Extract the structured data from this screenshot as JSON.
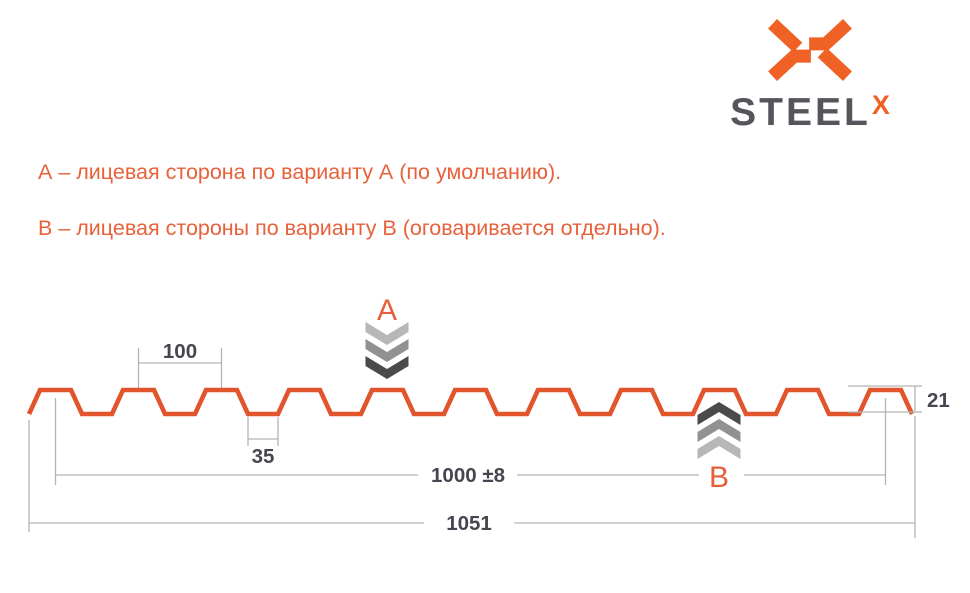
{
  "logo": {
    "brand": "STEEL",
    "brand_sup": "X"
  },
  "notes": {
    "variant_a": "А – лицевая сторона по варианту А (по умолчанию).",
    "variant_b": "В – лицевая стороны по варианту В (оговаривается отдельно)."
  },
  "diagram": {
    "marker_a": "A",
    "marker_b": "B",
    "dim_rib_pitch": "100",
    "dim_bottom_flat_width": "35",
    "dim_profile_height": "21",
    "dim_working_width": "1000 ±8",
    "dim_overall_width": "1051"
  },
  "colors": {
    "accent_orange_text": "#e7613a",
    "logo_orange": "#f06125",
    "logo_gray": "#54565c",
    "profile_stroke": "#e2542c",
    "dimension_text": "#45464f",
    "dimension_line": "#b3b4b6",
    "chevron_light": "#b7b7b9",
    "chevron_mid": "#919193",
    "chevron_dark": "#4a4a4c"
  }
}
